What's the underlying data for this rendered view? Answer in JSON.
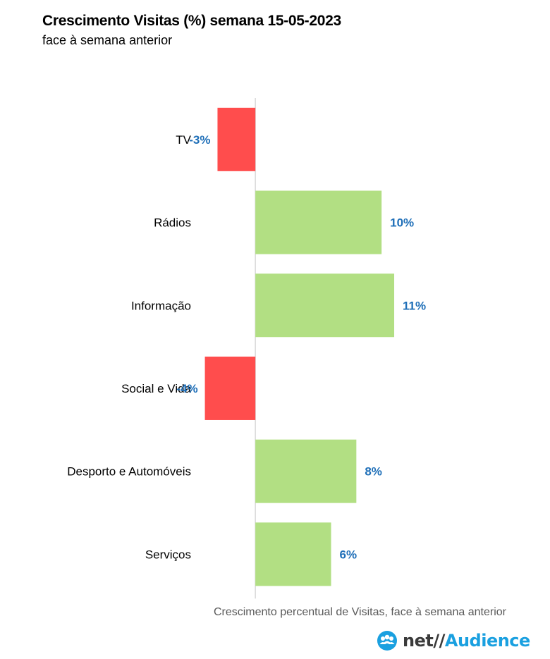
{
  "header": {
    "title": "Crescimento Visitas (%) semana  15-05-2023",
    "subtitle": "face à semana anterior"
  },
  "chart_data": {
    "type": "bar",
    "orientation": "horizontal",
    "categories": [
      "TV",
      "Rádios",
      "Informação",
      "Social e Vida",
      "Desporto e Automóveis",
      "Serviços"
    ],
    "values": [
      -3,
      10,
      11,
      -4,
      8,
      6
    ],
    "data_labels": [
      "-3%",
      "10%",
      "11%",
      "-4%",
      "8%",
      "6%"
    ],
    "xlabel": "Crescimento percentual de Visitas, face à semana anterior",
    "xlim": [
      -18,
      17.2
    ],
    "colors": {
      "positive": "#b2df83",
      "negative": "#ff4d4d",
      "label": "#1f6fb8"
    }
  },
  "logo": {
    "net": "net",
    "separator": "//",
    "audience": "Audience"
  }
}
